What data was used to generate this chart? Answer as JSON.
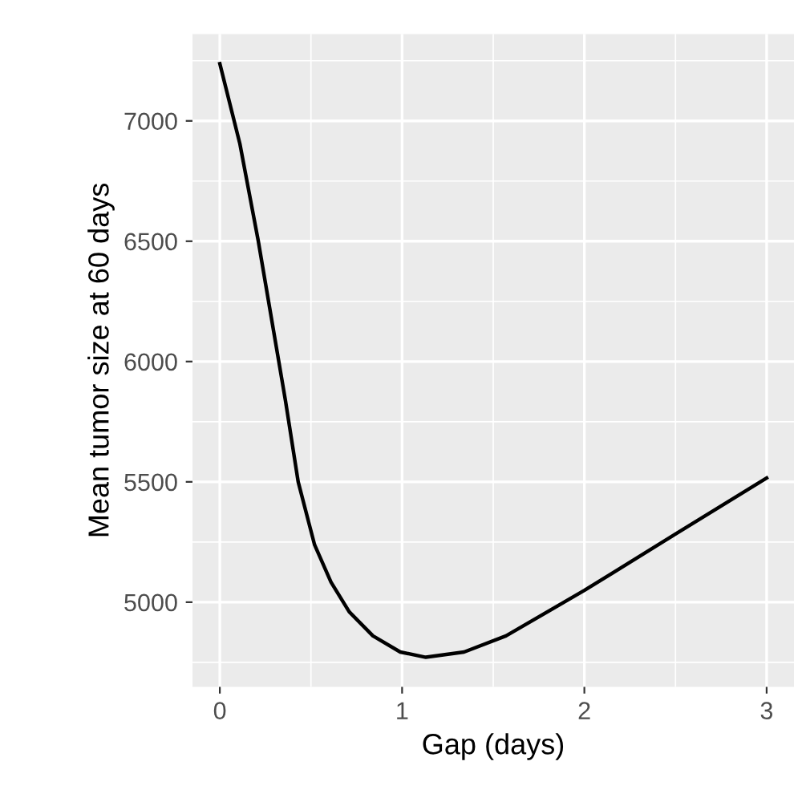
{
  "chart_data": {
    "type": "line",
    "xlabel": "Gap (days)",
    "ylabel": "Mean tumor size at 60 days",
    "series": [
      {
        "color": "#000000",
        "x": [
          0,
          0.11,
          0.21,
          0.36,
          0.43,
          0.52,
          0.61,
          0.71,
          0.84,
          0.99,
          1.13,
          1.34,
          1.57,
          2.0,
          2.5,
          3.0
        ],
        "values": [
          7238,
          6905,
          6505,
          5838,
          5500,
          5238,
          5083,
          4960,
          4860,
          4793,
          4771,
          4793,
          4860,
          5049,
          5283,
          5516
        ]
      }
    ],
    "xlim": [
      -0.15,
      3.15
    ],
    "xticks": [
      0,
      1,
      2,
      3
    ],
    "ylim": [
      4648,
      7361
    ],
    "yticks": [
      5000,
      5500,
      6000,
      6500,
      7000
    ],
    "grid": true,
    "legend": false,
    "marker": "none",
    "line_style": "solid"
  }
}
